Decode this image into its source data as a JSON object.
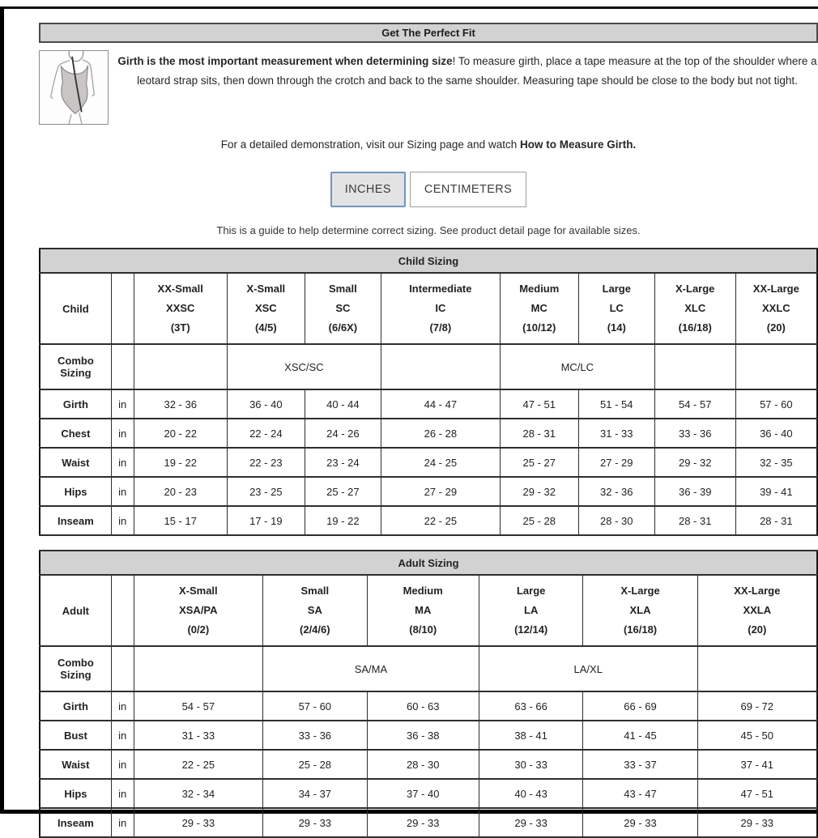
{
  "header": {
    "title": "Get The Perfect Fit"
  },
  "illustration": "leotard figure with diagonal girth measurement line",
  "intro": {
    "bold": "Girth is the most important measurement when determining size",
    "rest": "! To measure girth, place a tape measure at the top of the shoulder where a leotard strap sits, then down through the crotch and back to the same shoulder. Measuring tape should be close to the body but not tight."
  },
  "demo": {
    "text": "For a detailed demonstration, visit our Sizing page and watch ",
    "bold": "How to Measure Girth."
  },
  "units": {
    "inches_label": "INCHES",
    "centimeters_label": "CENTIMETERS",
    "selected": "INCHES"
  },
  "note": "This is a guide to help determine correct sizing. See product detail page for available sizes.",
  "colors": {
    "selected_button_border": "#7195bf",
    "selected_button_bg": "#e3e3e3",
    "title_bar_bg": "#d2d2d2",
    "table_border": "#141414"
  },
  "child_table": {
    "title": "Child Sizing",
    "row_header": "Child",
    "combo_header": "Combo Sizing",
    "columns": [
      {
        "name": "XX-Small",
        "code": "XXSC",
        "sizes": "(3T)"
      },
      {
        "name": "X-Small",
        "code": "XSC",
        "sizes": "(4/5)"
      },
      {
        "name": "Small",
        "code": "SC",
        "sizes": "(6/6X)"
      },
      {
        "name": "Intermediate",
        "code": "IC",
        "sizes": "(7/8)"
      },
      {
        "name": "Medium",
        "code": "MC",
        "sizes": "(10/12)"
      },
      {
        "name": "Large",
        "code": "LC",
        "sizes": "(14)"
      },
      {
        "name": "X-Large",
        "code": "XLC",
        "sizes": "(16/18)"
      },
      {
        "name": "XX-Large",
        "code": "XXLC",
        "sizes": "(20)"
      }
    ],
    "combo_cells": [
      {
        "span": 1,
        "label": ""
      },
      {
        "span": 2,
        "label": "XSC/SC"
      },
      {
        "span": 1,
        "label": ""
      },
      {
        "span": 2,
        "label": "MC/LC"
      },
      {
        "span": 1,
        "label": ""
      },
      {
        "span": 1,
        "label": ""
      }
    ],
    "rows": [
      {
        "label": "Girth",
        "unit": "in",
        "values": [
          "32 - 36",
          "36 - 40",
          "40 - 44",
          "44 - 47",
          "47 - 51",
          "51 - 54",
          "54 - 57",
          "57 - 60"
        ]
      },
      {
        "label": "Chest",
        "unit": "in",
        "values": [
          "20 - 22",
          "22 - 24",
          "24 - 26",
          "26 - 28",
          "28 - 31",
          "31 - 33",
          "33 - 36",
          "36 - 40"
        ]
      },
      {
        "label": "Waist",
        "unit": "in",
        "values": [
          "19 - 22",
          "22 - 23",
          "23 - 24",
          "24 - 25",
          "25 - 27",
          "27 - 29",
          "29 - 32",
          "32 - 35"
        ]
      },
      {
        "label": "Hips",
        "unit": "in",
        "values": [
          "20 - 23",
          "23 - 25",
          "25 - 27",
          "27 - 29",
          "29 - 32",
          "32 - 36",
          "36 - 39",
          "39 - 41"
        ]
      },
      {
        "label": "Inseam",
        "unit": "in",
        "values": [
          "15 - 17",
          "17 - 19",
          "19 - 22",
          "22 - 25",
          "25 - 28",
          "28 - 30",
          "28 - 31",
          "28 - 31"
        ]
      }
    ]
  },
  "adult_table": {
    "title": "Adult Sizing",
    "row_header": "Adult",
    "combo_header": "Combo Sizing",
    "columns": [
      {
        "name": "X-Small",
        "code": "XSA/PA",
        "sizes": "(0/2)"
      },
      {
        "name": "Small",
        "code": "SA",
        "sizes": "(2/4/6)"
      },
      {
        "name": "Medium",
        "code": "MA",
        "sizes": "(8/10)"
      },
      {
        "name": "Large",
        "code": "LA",
        "sizes": "(12/14)"
      },
      {
        "name": "X-Large",
        "code": "XLA",
        "sizes": "(16/18)"
      },
      {
        "name": "XX-Large",
        "code": "XXLA",
        "sizes": "(20)"
      }
    ],
    "combo_cells": [
      {
        "span": 1,
        "label": ""
      },
      {
        "span": 2,
        "label": "SA/MA"
      },
      {
        "span": 2,
        "label": "LA/XL"
      },
      {
        "span": 1,
        "label": ""
      }
    ],
    "rows": [
      {
        "label": "Girth",
        "unit": "in",
        "values": [
          "54 - 57",
          "57 - 60",
          "60 - 63",
          "63 - 66",
          "66 - 69",
          "69 - 72"
        ]
      },
      {
        "label": "Bust",
        "unit": "in",
        "values": [
          "31 - 33",
          "33 - 36",
          "36 - 38",
          "38 - 41",
          "41 - 45",
          "45 - 50"
        ]
      },
      {
        "label": "Waist",
        "unit": "in",
        "values": [
          "22 - 25",
          "25 - 28",
          "28 - 30",
          "30 - 33",
          "33 - 37",
          "37 - 41"
        ]
      },
      {
        "label": "Hips",
        "unit": "in",
        "values": [
          "32 - 34",
          "34 - 37",
          "37 - 40",
          "40 - 43",
          "43 - 47",
          "47 - 51"
        ]
      },
      {
        "label": "Inseam",
        "unit": "in",
        "values": [
          "29 - 33",
          "29 - 33",
          "29 - 33",
          "29 - 33",
          "29 - 33",
          "29 - 33"
        ]
      }
    ]
  }
}
